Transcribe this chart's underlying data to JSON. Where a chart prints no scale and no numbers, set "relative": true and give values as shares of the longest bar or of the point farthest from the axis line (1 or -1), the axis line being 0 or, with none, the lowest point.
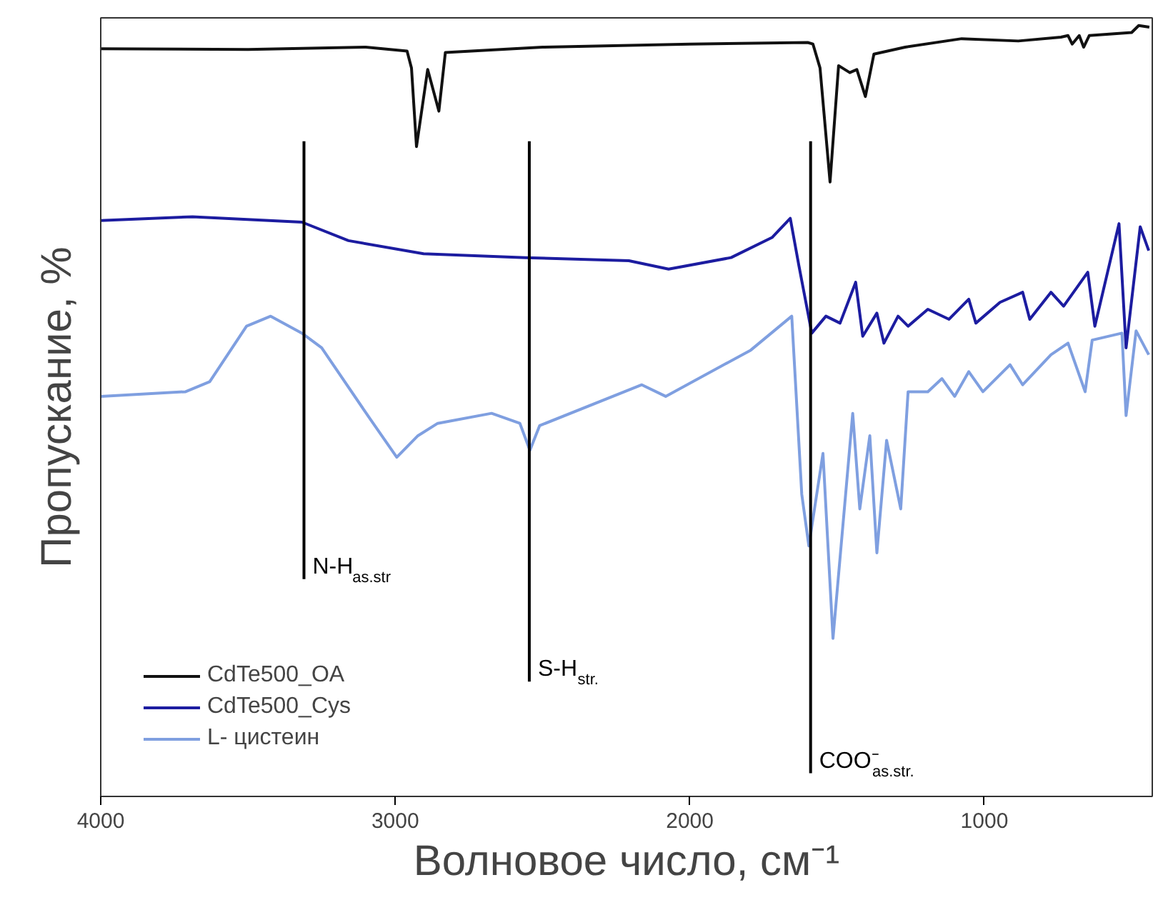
{
  "chart_data": {
    "type": "line",
    "relative": true,
    "xlabel": "Волновое число, см⁻¹",
    "ylabel": "Пропускание, %",
    "xlim": [
      4000,
      430
    ],
    "xticks": [
      4000,
      3000,
      2000,
      1000
    ],
    "grid": false,
    "legend": "bottom left",
    "line_style": "solid",
    "marker": "none",
    "ref_lines": [
      {
        "axis": "x",
        "value": 3310,
        "label": "N-H$_{as.str}$",
        "color": "#000000"
      },
      {
        "axis": "x",
        "value": 2545,
        "label": "S-H$_{str.}$",
        "color": "#000000"
      },
      {
        "axis": "x",
        "value": 1590,
        "label": "COO⁻$_{as.str.}$",
        "color": "#000000"
      }
    ],
    "series": [
      {
        "name": "CdTe500_OA",
        "color": "#111111",
        "x": [
          4000,
          3500,
          3100,
          2960,
          2945,
          2928,
          2890,
          2852,
          2830,
          2500,
          2000,
          1600,
          1582,
          1558,
          1524,
          1495,
          1457,
          1433,
          1404,
          1375,
          1269,
          1077,
          885,
          740,
          716,
          702,
          678,
          663,
          644,
          500,
          476,
          440
        ],
        "values": [
          0.97,
          0.969,
          0.972,
          0.967,
          0.945,
          0.843,
          0.943,
          0.889,
          0.965,
          0.972,
          0.976,
          0.978,
          0.976,
          0.945,
          0.797,
          0.948,
          0.939,
          0.943,
          0.908,
          0.963,
          0.972,
          0.983,
          0.98,
          0.985,
          0.987,
          0.976,
          0.987,
          0.972,
          0.987,
          0.991,
          1.0,
          0.998
        ]
      },
      {
        "name": "CdTe500_Cys",
        "color": "#1c1ca0",
        "x": [
          4000,
          3688,
          3317,
          3159,
          2904,
          2558,
          2207,
          2072,
          1860,
          1721,
          1659,
          1630,
          1586,
          1538,
          1490,
          1437,
          1413,
          1365,
          1341,
          1293,
          1259,
          1192,
          1120,
          1053,
          1029,
          947,
          870,
          846,
          774,
          731,
          649,
          625,
          543,
          519,
          471,
          442
        ],
        "values": [
          0.747,
          0.752,
          0.745,
          0.721,
          0.704,
          0.699,
          0.695,
          0.684,
          0.699,
          0.725,
          0.75,
          0.689,
          0.601,
          0.623,
          0.614,
          0.667,
          0.597,
          0.627,
          0.588,
          0.623,
          0.61,
          0.632,
          0.619,
          0.645,
          0.614,
          0.641,
          0.654,
          0.619,
          0.654,
          0.636,
          0.68,
          0.61,
          0.743,
          0.582,
          0.739,
          0.708
        ]
      },
      {
        "name": "L- цистеин",
        "color": "#7f9fe0",
        "x": [
          4000,
          3712,
          3630,
          3505,
          3423,
          3317,
          3250,
          3086,
          2995,
          2923,
          2856,
          2673,
          2577,
          2543,
          2510,
          2163,
          2082,
          1793,
          1654,
          1620,
          1596,
          1548,
          1514,
          1447,
          1423,
          1389,
          1365,
          1332,
          1284,
          1259,
          1192,
          1144,
          1101,
          1053,
          1005,
          913,
          870,
          774,
          716,
          658,
          634,
          533,
          519,
          485,
          442
        ],
        "values": [
          0.519,
          0.525,
          0.538,
          0.61,
          0.623,
          0.601,
          0.582,
          0.49,
          0.44,
          0.468,
          0.484,
          0.497,
          0.484,
          0.449,
          0.481,
          0.534,
          0.519,
          0.579,
          0.623,
          0.392,
          0.325,
          0.445,
          0.205,
          0.497,
          0.373,
          0.468,
          0.316,
          0.462,
          0.373,
          0.525,
          0.525,
          0.542,
          0.519,
          0.551,
          0.525,
          0.56,
          0.534,
          0.573,
          0.588,
          0.525,
          0.592,
          0.601,
          0.494,
          0.604,
          0.573
        ]
      }
    ]
  }
}
